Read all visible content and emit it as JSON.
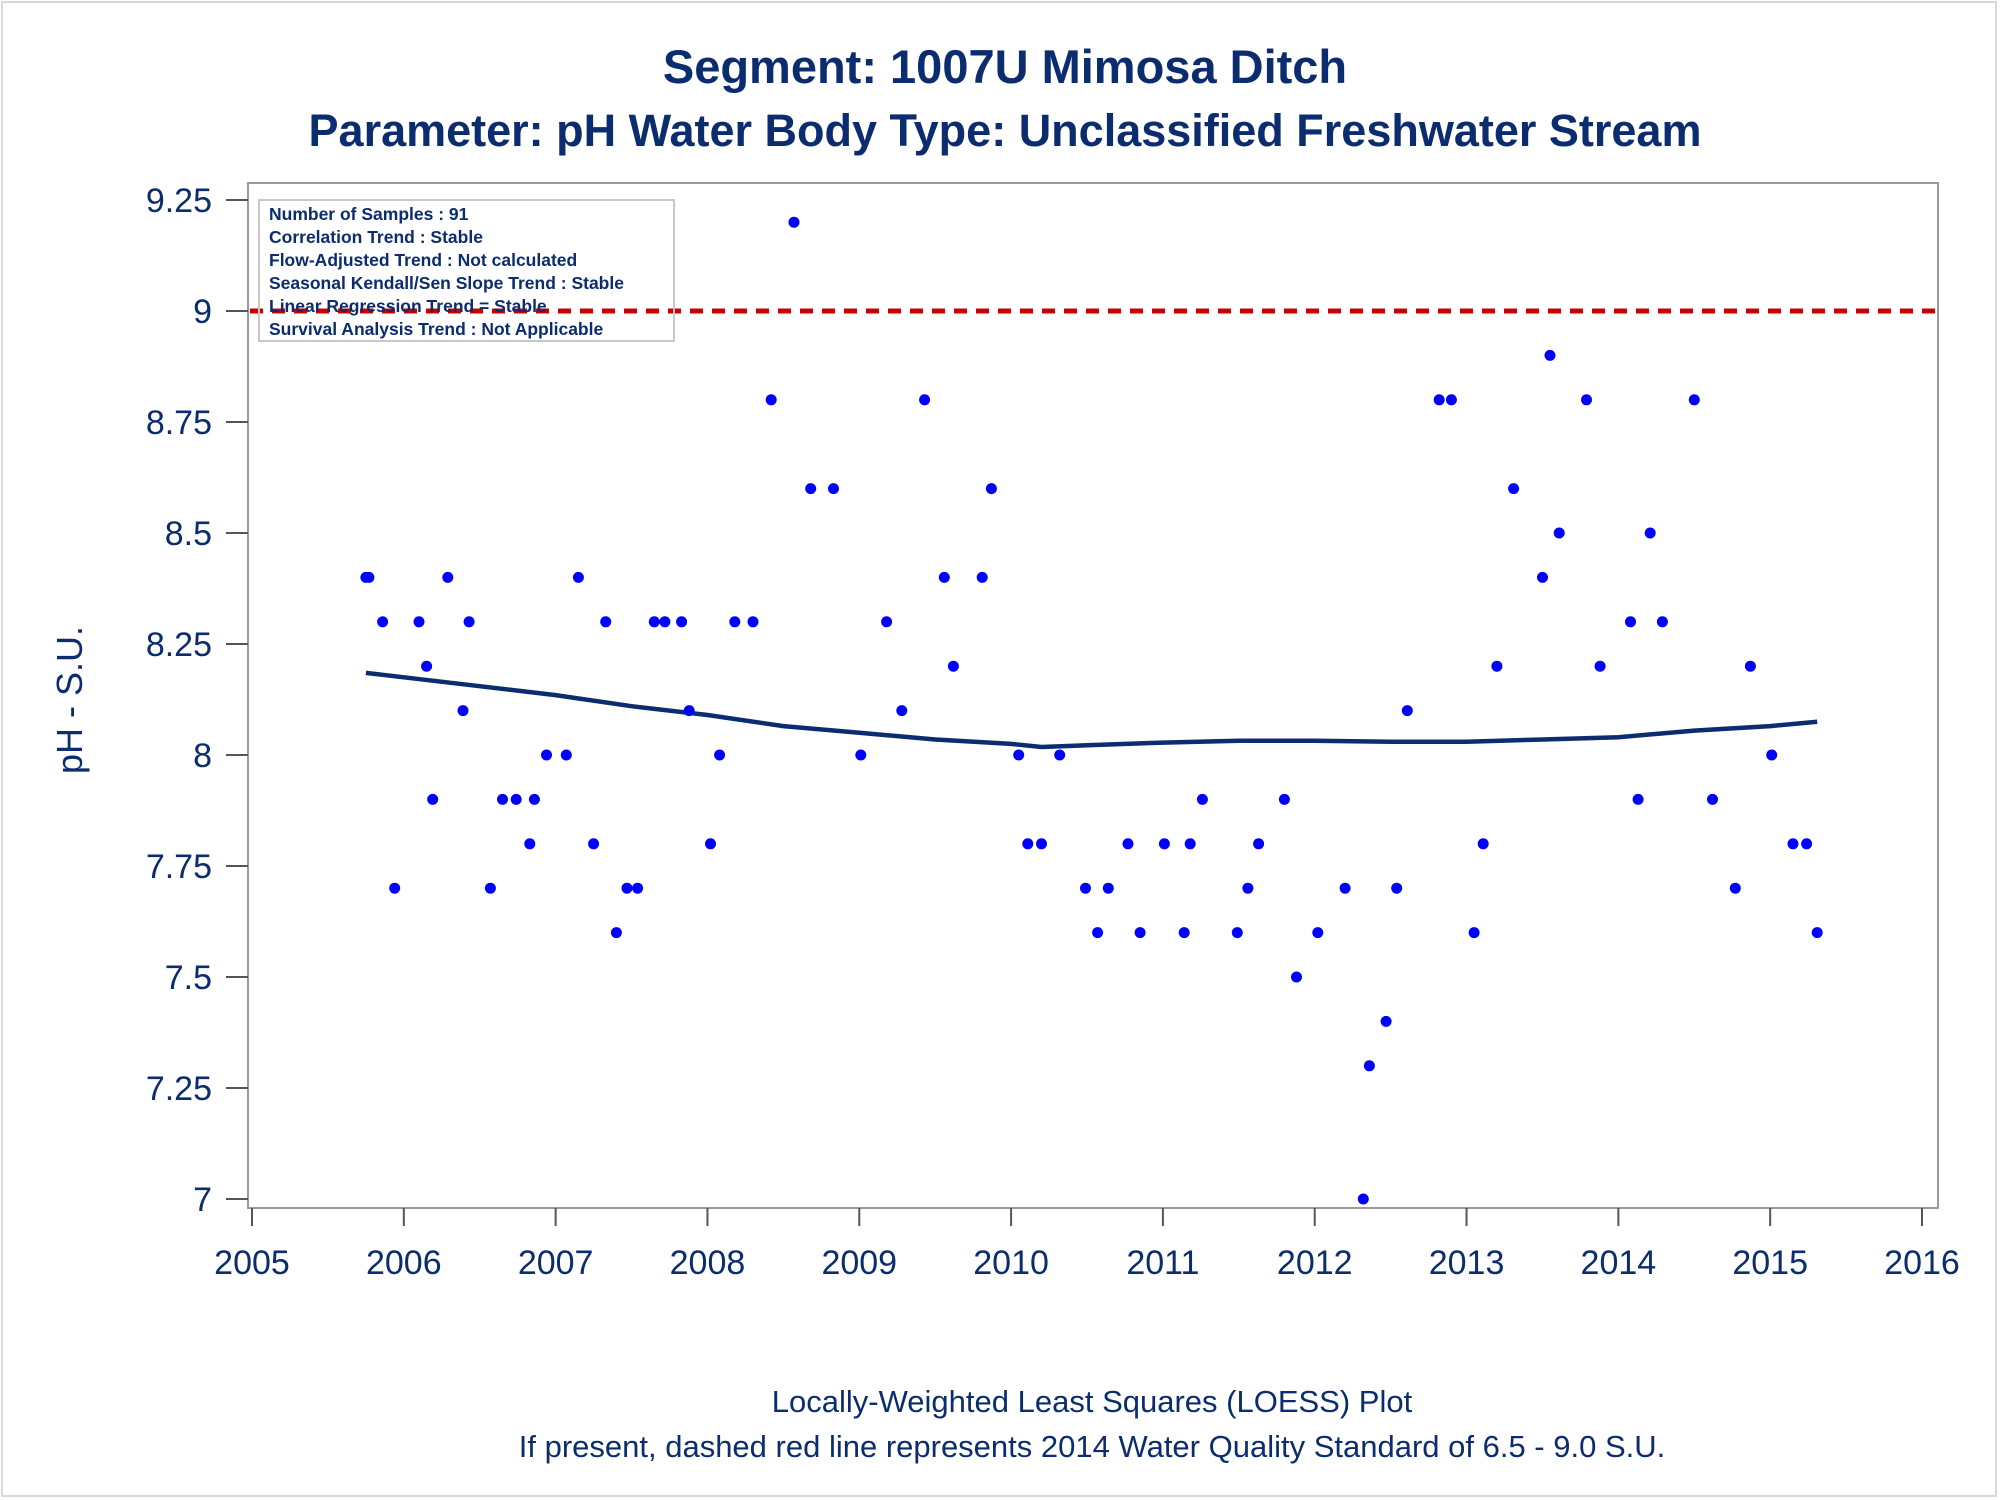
{
  "chart_data": {
    "type": "scatter",
    "title": "Segment: 1007U  Mimosa Ditch",
    "subtitle": "Parameter: pH   Water Body Type: Unclassified Freshwater Stream",
    "ylabel": "pH - S.U.",
    "xlabel": "",
    "xlim": [
      2005,
      2016
    ],
    "ylim": [
      7,
      9.25
    ],
    "x_ticks": [
      "2005",
      "2006",
      "2007",
      "2008",
      "2009",
      "2010",
      "2011",
      "2012",
      "2013",
      "2014",
      "2015",
      "2016"
    ],
    "y_ticks": [
      "7",
      "7.25",
      "7.5",
      "7.75",
      "8",
      "8.25",
      "8.5",
      "8.75",
      "9",
      "9.25"
    ],
    "grid": false,
    "reference_line": {
      "y": 9.0,
      "color": "#cc0000",
      "style": "dashed"
    },
    "point_color": "#0000ff",
    "loess_color": "#0b2c6e",
    "stats_box": [
      "Number of Samples : 91",
      "Correlation Trend : Stable",
      "Flow-Adjusted Trend : Not calculated",
      "Seasonal Kendall/Sen Slope Trend : Stable",
      "Linear Regression Trend = Stable",
      "Survival Analysis Trend : Not Applicable"
    ],
    "points": [
      [
        2005.75,
        8.4
      ],
      [
        2005.77,
        8.4
      ],
      [
        2005.86,
        8.3
      ],
      [
        2005.94,
        7.7
      ],
      [
        2006.1,
        8.3
      ],
      [
        2006.15,
        8.2
      ],
      [
        2006.19,
        7.9
      ],
      [
        2006.29,
        8.4
      ],
      [
        2006.39,
        8.1
      ],
      [
        2006.43,
        8.3
      ],
      [
        2006.57,
        7.7
      ],
      [
        2006.65,
        7.9
      ],
      [
        2006.74,
        7.9
      ],
      [
        2006.83,
        7.8
      ],
      [
        2006.86,
        7.9
      ],
      [
        2006.94,
        8.0
      ],
      [
        2007.07,
        8.0
      ],
      [
        2007.15,
        8.4
      ],
      [
        2007.25,
        7.8
      ],
      [
        2007.33,
        8.3
      ],
      [
        2007.4,
        7.6
      ],
      [
        2007.47,
        7.7
      ],
      [
        2007.54,
        7.7
      ],
      [
        2007.65,
        8.3
      ],
      [
        2007.72,
        8.3
      ],
      [
        2007.83,
        8.3
      ],
      [
        2007.88,
        8.1
      ],
      [
        2008.02,
        7.8
      ],
      [
        2008.08,
        8.0
      ],
      [
        2008.18,
        8.3
      ],
      [
        2008.3,
        8.3
      ],
      [
        2008.42,
        8.8
      ],
      [
        2008.57,
        9.2
      ],
      [
        2008.68,
        8.6
      ],
      [
        2008.83,
        8.6
      ],
      [
        2009.01,
        8.0
      ],
      [
        2009.18,
        8.3
      ],
      [
        2009.28,
        8.1
      ],
      [
        2009.43,
        8.8
      ],
      [
        2009.56,
        8.4
      ],
      [
        2009.62,
        8.2
      ],
      [
        2009.81,
        8.4
      ],
      [
        2009.87,
        8.6
      ],
      [
        2010.05,
        8.0
      ],
      [
        2010.11,
        7.8
      ],
      [
        2010.2,
        7.8
      ],
      [
        2010.32,
        8.0
      ],
      [
        2010.49,
        7.7
      ],
      [
        2010.57,
        7.6
      ],
      [
        2010.64,
        7.7
      ],
      [
        2010.77,
        7.8
      ],
      [
        2010.85,
        7.6
      ],
      [
        2011.01,
        7.8
      ],
      [
        2011.14,
        7.6
      ],
      [
        2011.18,
        7.8
      ],
      [
        2011.26,
        7.9
      ],
      [
        2011.49,
        7.6
      ],
      [
        2011.56,
        7.7
      ],
      [
        2011.63,
        7.8
      ],
      [
        2011.8,
        7.9
      ],
      [
        2011.88,
        7.5
      ],
      [
        2012.02,
        7.6
      ],
      [
        2012.2,
        7.7
      ],
      [
        2012.32,
        7.0
      ],
      [
        2012.36,
        7.3
      ],
      [
        2012.47,
        7.4
      ],
      [
        2012.54,
        7.7
      ],
      [
        2012.61,
        8.1
      ],
      [
        2012.82,
        8.8
      ],
      [
        2012.9,
        8.8
      ],
      [
        2013.05,
        7.6
      ],
      [
        2013.11,
        7.8
      ],
      [
        2013.2,
        8.2
      ],
      [
        2013.31,
        8.6
      ],
      [
        2013.5,
        8.4
      ],
      [
        2013.55,
        8.9
      ],
      [
        2013.61,
        8.5
      ],
      [
        2013.79,
        8.8
      ],
      [
        2013.88,
        8.2
      ],
      [
        2014.08,
        8.3
      ],
      [
        2014.13,
        7.9
      ],
      [
        2014.21,
        8.5
      ],
      [
        2014.29,
        8.3
      ],
      [
        2014.5,
        8.8
      ],
      [
        2014.62,
        7.9
      ],
      [
        2014.77,
        7.7
      ],
      [
        2014.87,
        8.2
      ],
      [
        2015.01,
        8.0
      ],
      [
        2015.15,
        7.8
      ],
      [
        2015.24,
        7.8
      ],
      [
        2015.31,
        7.6
      ]
    ],
    "loess": [
      [
        2005.75,
        8.185
      ],
      [
        2006.0,
        8.175
      ],
      [
        2006.5,
        8.155
      ],
      [
        2007.0,
        8.135
      ],
      [
        2007.5,
        8.11
      ],
      [
        2008.0,
        8.09
      ],
      [
        2008.5,
        8.065
      ],
      [
        2009.0,
        8.05
      ],
      [
        2009.5,
        8.035
      ],
      [
        2010.0,
        8.025
      ],
      [
        2010.2,
        8.018
      ],
      [
        2010.5,
        8.022
      ],
      [
        2011.0,
        8.028
      ],
      [
        2011.5,
        8.032
      ],
      [
        2012.0,
        8.032
      ],
      [
        2012.5,
        8.03
      ],
      [
        2013.0,
        8.03
      ],
      [
        2013.5,
        8.035
      ],
      [
        2014.0,
        8.04
      ],
      [
        2014.5,
        8.055
      ],
      [
        2015.0,
        8.065
      ],
      [
        2015.31,
        8.075
      ]
    ],
    "footnotes": [
      "Locally-Weighted Least Squares (LOESS) Plot",
      "If present, dashed red line represents 2014 Water Quality Standard of 6.5 - 9.0 S.U."
    ]
  }
}
